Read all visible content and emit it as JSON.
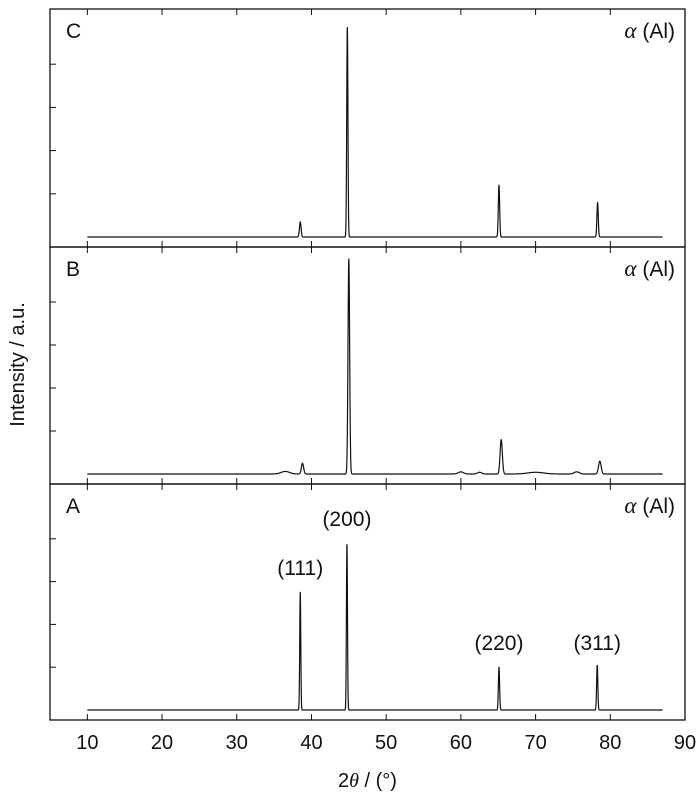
{
  "chart_data": {
    "type": "line",
    "xlabel_prefix": "2",
    "xlabel_symbol": "θ",
    "xlabel_suffix": " / (°)",
    "ylabel": "Intensity / a.u.",
    "xlim": [
      5,
      90
    ],
    "xticks": [
      10,
      20,
      30,
      40,
      50,
      60,
      70,
      80,
      90
    ],
    "phase_symbol": "α",
    "phase_label": " (Al)",
    "panels": [
      {
        "label": "C",
        "x_start": 10,
        "x_end": 87,
        "ylim": [
          0,
          1.0
        ],
        "yticks": [
          0.2,
          0.4,
          0.6,
          0.8
        ],
        "peaks": [
          {
            "x": 38.5,
            "height": 0.07,
            "width": 0.22
          },
          {
            "x": 44.8,
            "height": 0.97,
            "width": 0.16
          },
          {
            "x": 65.1,
            "height": 0.24,
            "width": 0.18
          },
          {
            "x": 78.3,
            "height": 0.16,
            "width": 0.18
          }
        ],
        "bumps": [],
        "peak_labels": []
      },
      {
        "label": "B",
        "x_start": 10,
        "x_end": 87,
        "ylim": [
          0,
          1.0
        ],
        "yticks": [
          0.2,
          0.4,
          0.6,
          0.8
        ],
        "peaks": [
          {
            "x": 38.8,
            "height": 0.05,
            "width": 0.3
          },
          {
            "x": 45.0,
            "height": 1.0,
            "width": 0.22
          },
          {
            "x": 65.4,
            "height": 0.16,
            "width": 0.3
          },
          {
            "x": 78.6,
            "height": 0.06,
            "width": 0.35
          }
        ],
        "bumps": [
          {
            "x": 36.5,
            "height": 0.012,
            "width": 0.8
          },
          {
            "x": 60.0,
            "height": 0.01,
            "width": 0.5
          },
          {
            "x": 62.5,
            "height": 0.008,
            "width": 0.4
          },
          {
            "x": 70.0,
            "height": 0.008,
            "width": 1.5
          },
          {
            "x": 75.5,
            "height": 0.01,
            "width": 0.5
          }
        ],
        "peak_labels": []
      },
      {
        "label": "A",
        "x_start": 10,
        "x_end": 87,
        "ylim": [
          0,
          1.0
        ],
        "yticks": [
          0.2,
          0.4,
          0.6,
          0.8
        ],
        "peaks": [
          {
            "x": 38.5,
            "height": 0.55,
            "width": 0.14
          },
          {
            "x": 44.75,
            "height": 0.78,
            "width": 0.14
          },
          {
            "x": 65.1,
            "height": 0.2,
            "width": 0.16
          },
          {
            "x": 78.25,
            "height": 0.21,
            "width": 0.16
          }
        ],
        "bumps": [],
        "peak_labels": [
          {
            "x": 38.5,
            "y": 0.63,
            "text": "(111)"
          },
          {
            "x": 44.75,
            "y": 0.86,
            "text": "(200)"
          },
          {
            "x": 65.1,
            "y": 0.28,
            "text": "(220)"
          },
          {
            "x": 78.25,
            "y": 0.28,
            "text": "(311)"
          }
        ]
      }
    ]
  }
}
